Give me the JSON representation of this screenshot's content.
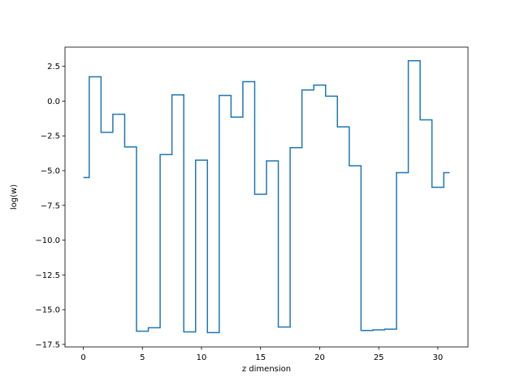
{
  "chart_data": {
    "type": "line",
    "drawstyle": "steps-mid",
    "title": "",
    "xlabel": "z dimension",
    "ylabel": "log(w)",
    "xlim": [
      -1.55,
      32.55
    ],
    "ylim": [
      -17.68,
      3.88
    ],
    "xticks": [
      0,
      5,
      10,
      15,
      20,
      25,
      30
    ],
    "xtick_labels": [
      "0",
      "5",
      "10",
      "15",
      "20",
      "25",
      "30"
    ],
    "yticks": [
      -17.5,
      -15.0,
      -12.5,
      -10.0,
      -7.5,
      -5.0,
      -2.5,
      0.0,
      2.5
    ],
    "ytick_labels": [
      "−17.5",
      "−15.0",
      "−12.5",
      "−10.0",
      "−7.5",
      "−5.0",
      "−2.5",
      "0.0",
      "2.5"
    ],
    "grid": false,
    "series": [
      {
        "name": "",
        "color": "#1f77b4",
        "x": [
          0,
          1,
          2,
          3,
          4,
          5,
          6,
          7,
          8,
          9,
          10,
          11,
          12,
          13,
          14,
          15,
          16,
          17,
          18,
          19,
          20,
          21,
          22,
          23,
          24,
          25,
          26,
          27,
          28,
          29,
          30,
          31
        ],
        "y": [
          -5.5,
          1.75,
          -2.25,
          -0.95,
          -3.3,
          -16.55,
          -16.3,
          -3.85,
          0.45,
          -16.6,
          -4.25,
          -16.65,
          0.4,
          -1.15,
          1.4,
          -6.7,
          -4.3,
          -16.25,
          -3.35,
          0.8,
          1.15,
          0.35,
          -1.85,
          -4.65,
          -16.5,
          -16.45,
          -16.4,
          -5.15,
          2.9,
          -1.35,
          -6.2,
          -5.15
        ]
      }
    ]
  }
}
